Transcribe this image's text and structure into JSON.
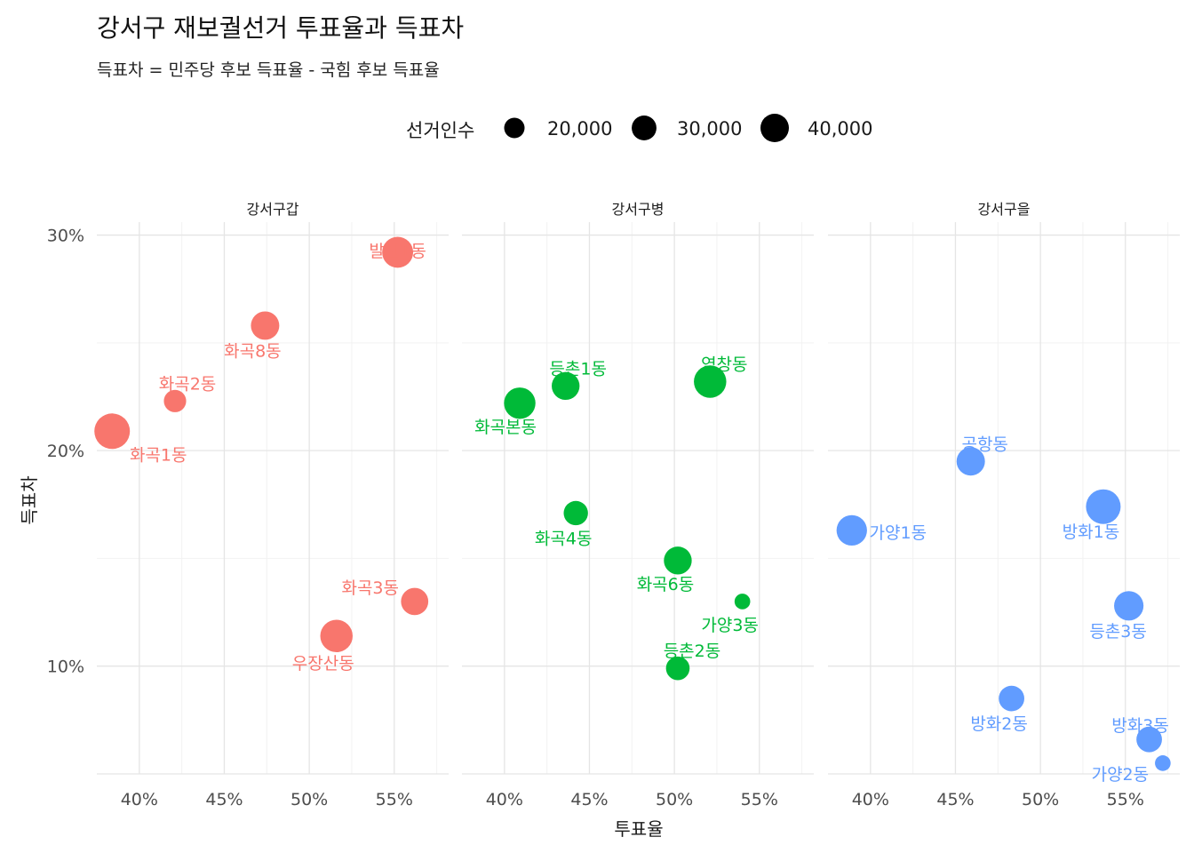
{
  "chart_data": {
    "type": "scatter",
    "title": "강서구 재보궐선거 투표율과 득표차",
    "subtitle": "득표차 = 민주당 후보 득표율 - 국힘 후보 득표율",
    "xlabel": "투표율",
    "ylabel": "득표차",
    "xlim": [
      37.5,
      58.2
    ],
    "ylim": [
      5.0,
      30.6
    ],
    "x_ticks": [
      40,
      45,
      50,
      55
    ],
    "x_tick_labels": [
      "40%",
      "45%",
      "50%",
      "55%"
    ],
    "y_ticks": [
      10,
      20,
      30
    ],
    "y_tick_labels": [
      "10%",
      "20%",
      "30%"
    ],
    "grid": true,
    "legend": {
      "title": "선거인수",
      "position": "top",
      "entries": [
        {
          "label": "20,000",
          "value": 20000
        },
        {
          "label": "30,000",
          "value": 30000
        },
        {
          "label": "40,000",
          "value": 40000
        }
      ]
    },
    "facets": [
      {
        "name": "강서구갑",
        "color": "#F8766D",
        "points": [
          {
            "label": "발산1동",
            "x": 55.2,
            "y": 29.2,
            "size": 30000
          },
          {
            "label": "화곡8동",
            "x": 47.4,
            "y": 25.8,
            "size": 25000
          },
          {
            "label": "화곡2동",
            "x": 42.1,
            "y": 22.3,
            "size": 15000
          },
          {
            "label": "화곡1동",
            "x": 38.4,
            "y": 20.9,
            "size": 40000
          },
          {
            "label": "화곡3동",
            "x": 56.2,
            "y": 13.0,
            "size": 23000
          },
          {
            "label": "우장산동",
            "x": 51.6,
            "y": 11.4,
            "size": 33000
          }
        ]
      },
      {
        "name": "강서구병",
        "color": "#00BA38",
        "points": [
          {
            "label": "등촌1동",
            "x": 43.6,
            "y": 23.0,
            "size": 24000
          },
          {
            "label": "염창동",
            "x": 52.1,
            "y": 23.2,
            "size": 33000
          },
          {
            "label": "화곡본동",
            "x": 40.9,
            "y": 22.2,
            "size": 31000
          },
          {
            "label": "화곡4동",
            "x": 44.2,
            "y": 17.1,
            "size": 18000
          },
          {
            "label": "화곡6동",
            "x": 50.2,
            "y": 14.9,
            "size": 24000
          },
          {
            "label": "가양3동",
            "x": 54.0,
            "y": 13.0,
            "size": 7000
          },
          {
            "label": "등촌2동",
            "x": 50.2,
            "y": 9.9,
            "size": 17000
          }
        ]
      },
      {
        "name": "강서구을",
        "color": "#619CFF",
        "points": [
          {
            "label": "공항동",
            "x": 45.9,
            "y": 19.5,
            "size": 25000
          },
          {
            "label": "가양1동",
            "x": 38.9,
            "y": 16.3,
            "size": 29000
          },
          {
            "label": "방화1동",
            "x": 53.7,
            "y": 17.4,
            "size": 38000
          },
          {
            "label": "등촌3동",
            "x": 55.2,
            "y": 12.8,
            "size": 27000
          },
          {
            "label": "방화2동",
            "x": 48.3,
            "y": 8.5,
            "size": 20000
          },
          {
            "label": "방화3동",
            "x": 56.4,
            "y": 6.6,
            "size": 20000
          },
          {
            "label": "가양2동",
            "x": 57.2,
            "y": 5.5,
            "size": 7000
          }
        ]
      }
    ]
  }
}
